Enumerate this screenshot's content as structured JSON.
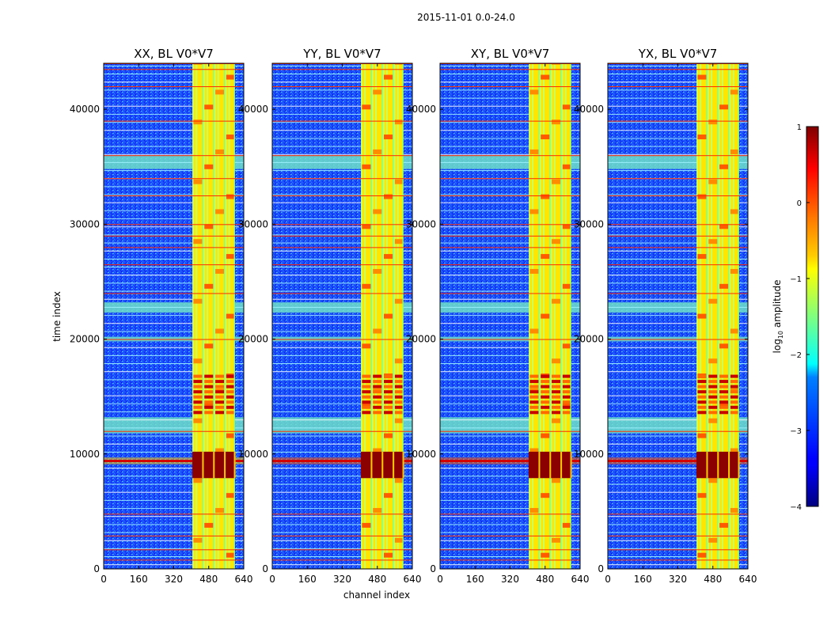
{
  "chart_data": {
    "type": "heatmap",
    "suptitle": "2015-11-01 0.0-24.0",
    "xlabel": "channel index",
    "ylabel": "time index",
    "xlim": [
      0,
      640
    ],
    "ylim": [
      0,
      44000
    ],
    "xticks": [
      0,
      160,
      320,
      480,
      640
    ],
    "yticks": [
      0,
      10000,
      20000,
      30000,
      40000
    ],
    "colorbar": {
      "label": "log10 amplitude",
      "range": [
        -4,
        1
      ],
      "ticks": [
        "1",
        "0",
        "−1",
        "−2",
        "−3",
        "−4"
      ],
      "colormap": "jet"
    },
    "panels": [
      {
        "title": "XX, BL V0*V7",
        "pol": "XX",
        "baseline": "V0*V7"
      },
      {
        "title": "YY, BL V0*V7",
        "pol": "YY",
        "baseline": "V0*V7"
      },
      {
        "title": "XY, BL V0*V7",
        "pol": "XY",
        "baseline": "V0*V7"
      },
      {
        "title": "YX, BL V0*V7",
        "pol": "YX",
        "baseline": "V0*V7"
      }
    ],
    "features": {
      "bright_channel_band": [
        405,
        600
      ],
      "bright_channel_lines": [
        405,
        420,
        455,
        470,
        505,
        520,
        555,
        570
      ],
      "strong_rfi_time": [
        8500,
        10000
      ],
      "mid_strong_time": [
        13500,
        17000
      ],
      "gap_bands_time": [
        [
          11800,
          13200
        ],
        [
          34800,
          36000
        ],
        [
          19800,
          20200
        ],
        [
          22300,
          23200
        ]
      ],
      "red_line_times": [
        800,
        1700,
        2900,
        4800,
        12000,
        20000,
        24000,
        26500,
        28000,
        29000,
        30000,
        32500,
        34000,
        36000,
        39000,
        42000,
        43500,
        44000
      ]
    }
  }
}
